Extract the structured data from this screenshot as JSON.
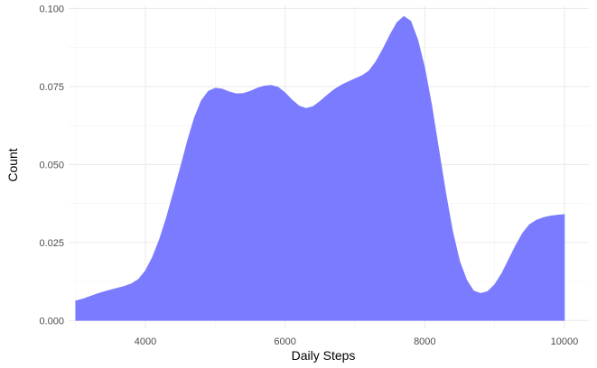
{
  "chart_data": {
    "type": "area",
    "title": "",
    "xlabel": "Daily Steps",
    "ylabel": "Count",
    "xlim": [
      2900,
      10350
    ],
    "ylim": [
      -0.0025,
      0.101
    ],
    "x_ticks": [
      4000,
      6000,
      8000,
      10000
    ],
    "x_tick_labels": [
      "4000",
      "6000",
      "8000",
      "10000"
    ],
    "y_ticks": [
      0.0,
      0.025,
      0.05,
      0.075,
      0.1
    ],
    "y_tick_labels": [
      "0.000",
      "0.025",
      "0.050",
      "0.075",
      "0.100"
    ],
    "grid": true,
    "legend": "none",
    "fill_color": "#7b7bff",
    "series": [
      {
        "x": [
          3000,
          3100,
          3200,
          3300,
          3400,
          3500,
          3600,
          3700,
          3800,
          3900,
          4000,
          4100,
          4200,
          4300,
          4400,
          4500,
          4600,
          4700,
          4800,
          4900,
          5000,
          5100,
          5200,
          5300,
          5400,
          5500,
          5600,
          5700,
          5800,
          5900,
          6000,
          6100,
          6200,
          6300,
          6400,
          6500,
          6600,
          6700,
          6800,
          6900,
          7000,
          7100,
          7200,
          7300,
          7400,
          7500,
          7600,
          7700,
          7800,
          7900,
          8000,
          8100,
          8200,
          8300,
          8400,
          8500,
          8600,
          8700,
          8800,
          8900,
          9000,
          9100,
          9200,
          9300,
          9400,
          9500,
          9600,
          9700,
          9800,
          9900,
          10000
        ],
        "values": [
          0.0063,
          0.0069,
          0.0077,
          0.0085,
          0.0092,
          0.0098,
          0.0104,
          0.011,
          0.0118,
          0.0132,
          0.016,
          0.0203,
          0.026,
          0.033,
          0.041,
          0.049,
          0.0575,
          0.065,
          0.0705,
          0.0735,
          0.0745,
          0.0742,
          0.0733,
          0.0727,
          0.0728,
          0.0735,
          0.0745,
          0.0752,
          0.0754,
          0.0748,
          0.073,
          0.0707,
          0.0688,
          0.068,
          0.0686,
          0.0703,
          0.0722,
          0.074,
          0.0754,
          0.0765,
          0.0775,
          0.0785,
          0.08,
          0.083,
          0.087,
          0.0915,
          0.0955,
          0.0975,
          0.096,
          0.09,
          0.081,
          0.069,
          0.055,
          0.041,
          0.0285,
          0.019,
          0.013,
          0.0095,
          0.0087,
          0.0093,
          0.0115,
          0.015,
          0.0195,
          0.024,
          0.028,
          0.0308,
          0.0322,
          0.033,
          0.0335,
          0.0338,
          0.034
        ]
      }
    ]
  }
}
